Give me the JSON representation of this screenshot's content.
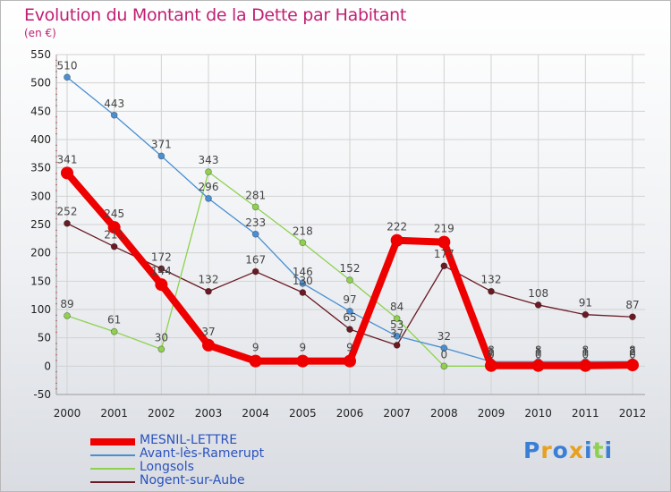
{
  "chart_data": {
    "type": "line",
    "title": "Evolution du Montant de la Dette par Habitant",
    "subtitle": "(en €)",
    "xlabel": "",
    "ylabel": "",
    "ylim": [
      -50,
      550
    ],
    "yticks": [
      -50,
      0,
      50,
      100,
      150,
      200,
      250,
      300,
      350,
      400,
      450,
      500,
      550
    ],
    "categories": [
      "2000",
      "2001",
      "2002",
      "2003",
      "2004",
      "2005",
      "2006",
      "2007",
      "2008",
      "2009",
      "2010",
      "2011",
      "2012"
    ],
    "series": [
      {
        "name": "Nogent-sur-Aube",
        "color": "#6b1a24",
        "values": [
          252,
          211,
          172,
          132,
          167,
          130,
          65,
          37,
          177,
          132,
          108,
          91,
          87
        ],
        "labels": [
          "252",
          "211",
          "172",
          "132",
          "167",
          "130",
          "65",
          "37",
          "177",
          "132",
          "108",
          "91",
          "87"
        ]
      },
      {
        "name": "Longsols",
        "color": "#8fd14f",
        "values": [
          89,
          61,
          30,
          343,
          281,
          218,
          152,
          84,
          0,
          0,
          0,
          0,
          0
        ],
        "labels": [
          "89",
          "61",
          "30",
          "343",
          "281",
          "218",
          "152",
          "84",
          "0",
          "0",
          "0",
          "0",
          "0"
        ]
      },
      {
        "name": "Avant-lès-Ramerupt",
        "color": "#4a8fd1",
        "values": [
          510,
          443,
          371,
          296,
          233,
          146,
          97,
          53,
          32,
          8,
          8,
          8,
          8
        ],
        "labels": [
          "510",
          "443",
          "371",
          "296",
          "233",
          "146",
          "97",
          "53",
          "32",
          "8",
          "8",
          "8",
          "8"
        ]
      },
      {
        "name": "MESNIL-LETTRE",
        "color": "#ee0000",
        "values": [
          341,
          245,
          144,
          37,
          9,
          9,
          9,
          222,
          219,
          1,
          1,
          1,
          2
        ],
        "labels": [
          "341",
          "245",
          "144",
          "37",
          "9",
          "9",
          "9",
          "222",
          "219",
          "1",
          "1",
          "1",
          "2"
        ]
      }
    ],
    "legend": [
      "MESNIL-LETTRE",
      "Avant-lès-Ramerupt",
      "Longsols",
      "Nogent-sur-Aube"
    ],
    "legend_position": "bottom-left"
  },
  "logo": {
    "letters": [
      "P",
      "r",
      "o",
      "x",
      "i",
      "t",
      "i"
    ],
    "colors": [
      "#3a7fd5",
      "#e8a020",
      "#3a7fd5",
      "#e8a020",
      "#3a7fd5",
      "#8fd14f",
      "#3a7fd5"
    ]
  }
}
